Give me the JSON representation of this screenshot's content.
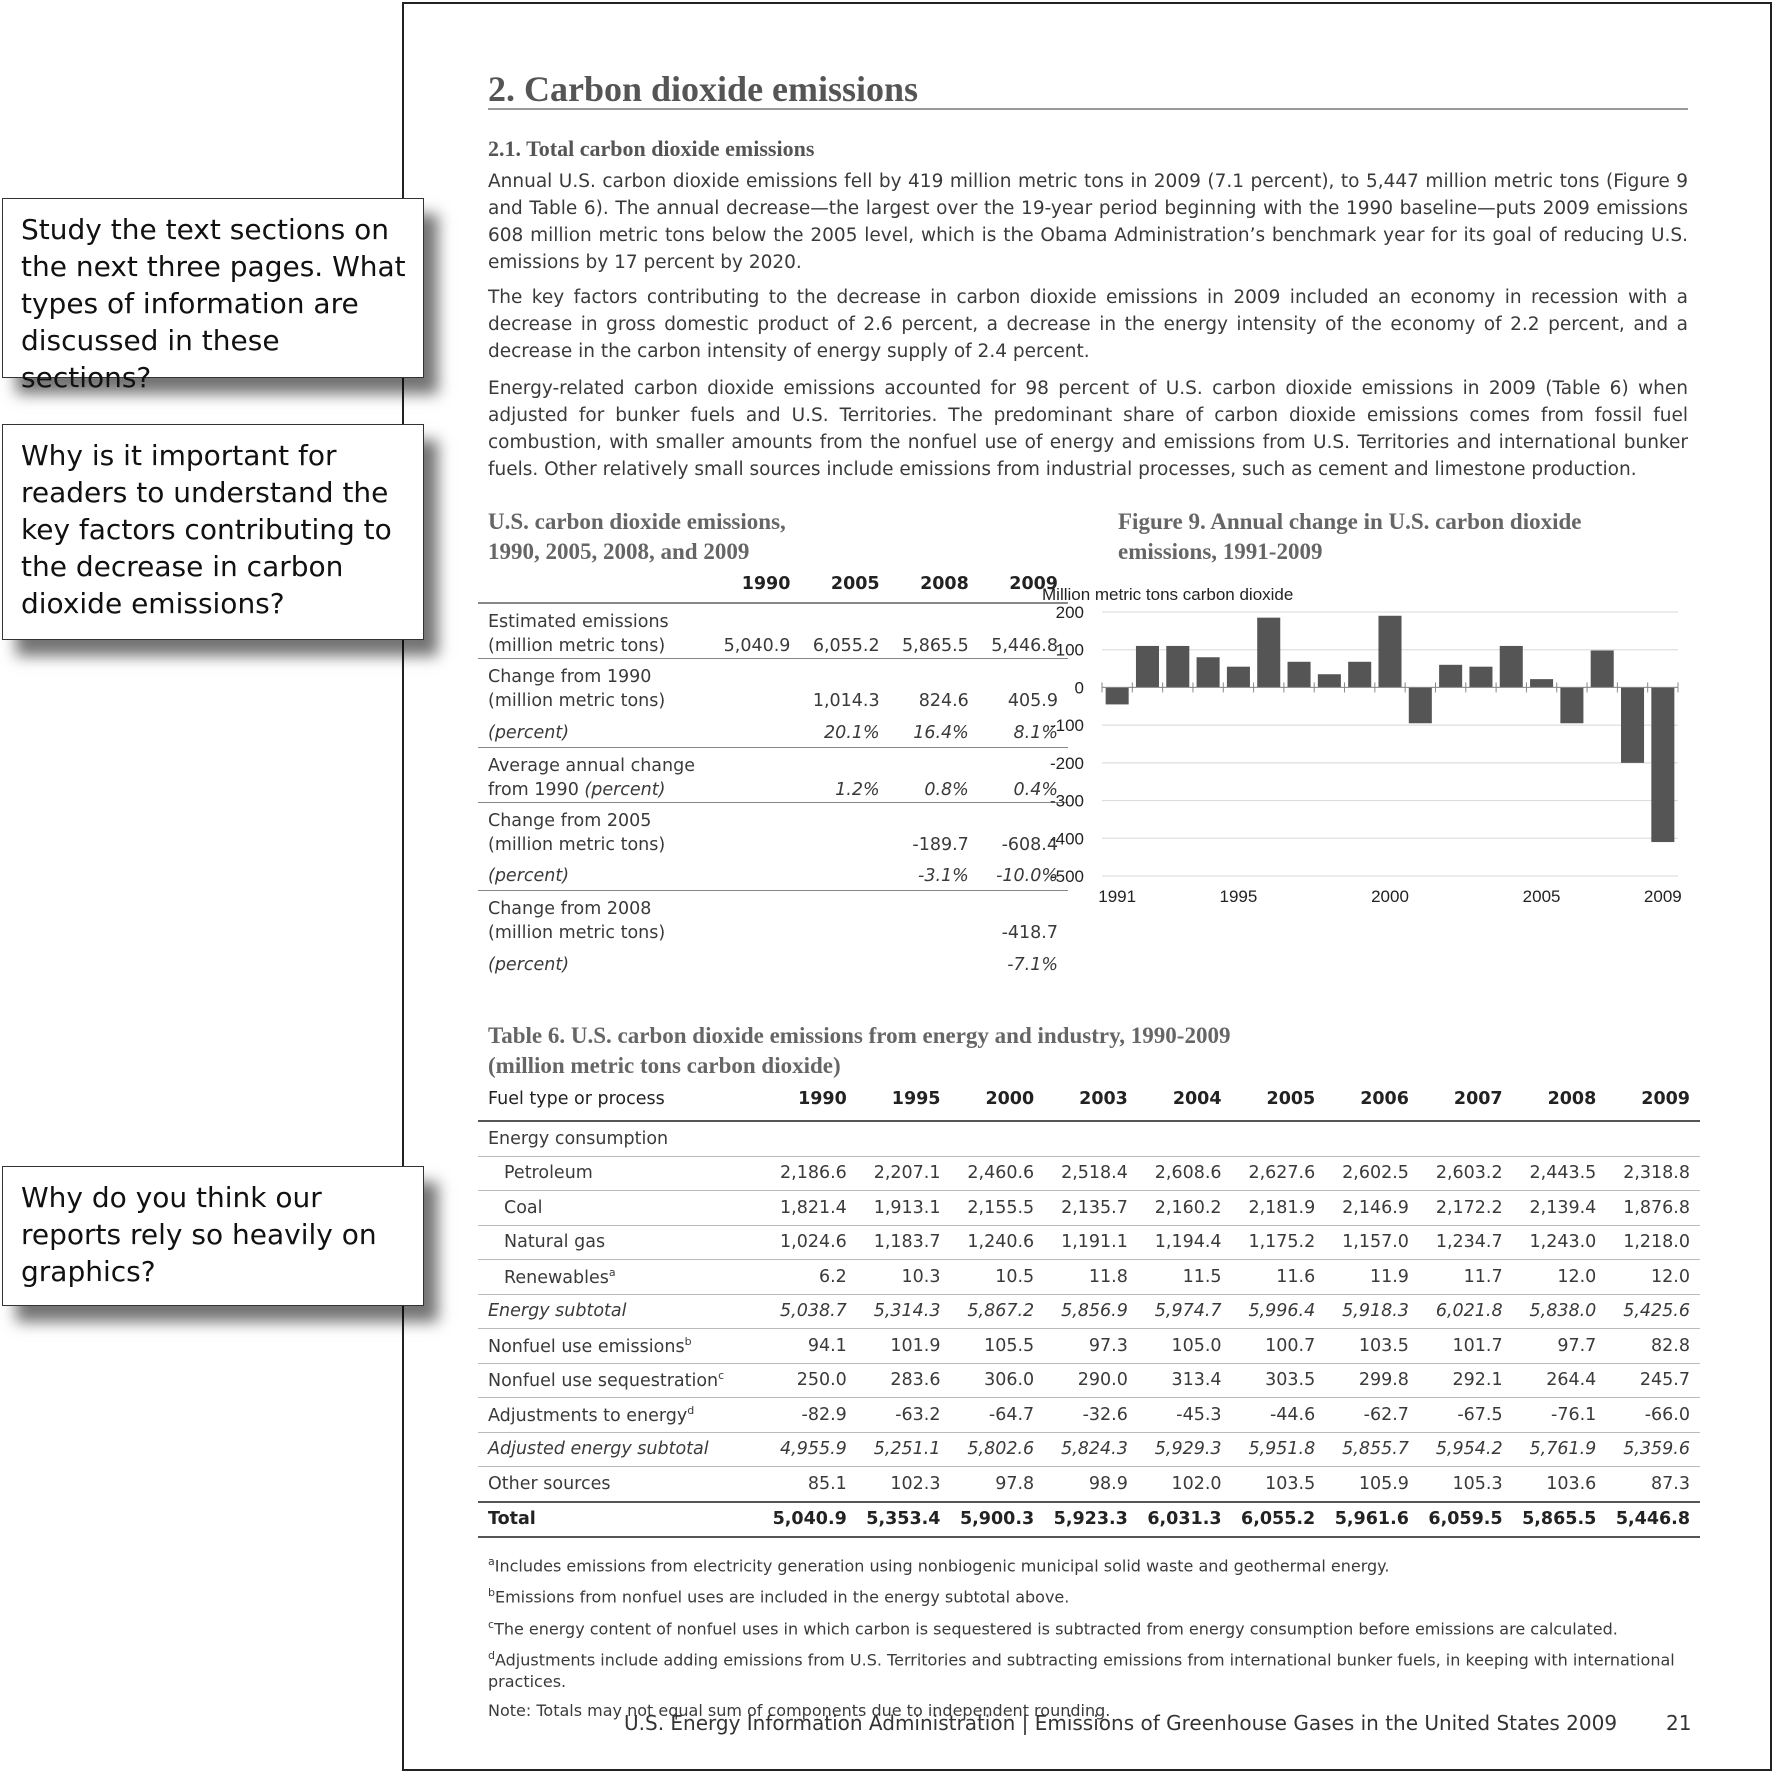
{
  "callouts": [
    "Study the text sections on the next three pages. What types of information are discussed in these sections?",
    "Why is it important for readers to understand the key factors contributing to the decrease in carbon dioxide emissions?",
    "Why do you think our reports rely so heavily on graphics?"
  ],
  "section_title": "2. Carbon dioxide emissions",
  "subsection_title": "2.1. Total carbon dioxide emissions",
  "paragraphs": [
    "Annual U.S. carbon dioxide emissions fell by 419 million metric tons in 2009 (7.1 percent), to 5,447 million metric tons (Figure 9 and Table 6). The annual decrease—the largest over the 19-year period beginning with the 1990 baseline—puts 2009 emissions 608 million metric tons below the 2005 level, which is the Obama Administration’s benchmark year for its goal of reducing U.S. emissions by 17 percent by 2020.",
    "The key factors contributing to the decrease in carbon dioxide emissions in 2009 included an economy in recession with a decrease in gross domestic product of 2.6 percent, a decrease in the energy intensity of the economy of 2.2 percent, and a decrease in the carbon intensity of energy supply of 2.4 percent.",
    "Energy-related carbon dioxide emissions accounted for 98 percent of U.S. carbon dioxide emissions in 2009 (Table 6) when adjusted for bunker fuels and U.S. Territories. The predominant share of carbon dioxide emissions comes from fossil fuel combustion, with smaller amounts from the nonfuel use of energy and emissions from U.S. Territories and international bunker fuels. Other relatively small sources include emissions from industrial processes, such as cement and limestone production."
  ],
  "summary_table": {
    "title_line1": "U.S. carbon dioxide emissions,",
    "title_line2": "1990, 2005, 2008, and 2009",
    "headers": [
      "1990",
      "2005",
      "2008",
      "2009"
    ],
    "rows": [
      {
        "l1": "Estimated emissions",
        "l2": "(million metric tons)",
        "v": [
          "5,040.9",
          "6,055.2",
          "5,865.5",
          "5,446.8"
        ]
      },
      {
        "l1": "Change from 1990",
        "l2": "(million metric tons)",
        "v": [
          "",
          "1,014.3",
          "824.6",
          "405.9"
        ],
        "p_label": "(percent)",
        "p": [
          "",
          "20.1%",
          "16.4%",
          "8.1%"
        ]
      },
      {
        "l1": "Average annual change",
        "l2_plain": "from 1990 ",
        "l2_it": "(percent)",
        "v": [
          "",
          "1.2%",
          "0.8%",
          "0.4%"
        ]
      },
      {
        "l1": "Change from 2005",
        "l2": "(million metric tons)",
        "v": [
          "",
          "",
          "-189.7",
          "-608.4"
        ],
        "p_label": "(percent)",
        "p": [
          "",
          "",
          "-3.1%",
          "-10.0%"
        ]
      },
      {
        "l1": "Change from 2008",
        "l2": "(million metric tons)",
        "v": [
          "",
          "",
          "",
          "-418.7"
        ],
        "p_label": "(percent)",
        "p": [
          "",
          "",
          "",
          "-7.1%"
        ]
      }
    ]
  },
  "figure": {
    "title_line1": "Figure 9. Annual change in U.S. carbon dioxide",
    "title_line2": "emissions, 1991-2009"
  },
  "chart_data": {
    "type": "bar",
    "title": "Figure 9. Annual change in U.S. carbon dioxide emissions, 1991-2009",
    "ylabel": "Million metric tons carbon dioxide",
    "x": [
      1991,
      1992,
      1993,
      1994,
      1995,
      1996,
      1997,
      1998,
      1999,
      2000,
      2001,
      2002,
      2003,
      2004,
      2005,
      2006,
      2007,
      2008,
      2009
    ],
    "values": [
      -45,
      110,
      110,
      80,
      55,
      185,
      68,
      35,
      68,
      190,
      -95,
      60,
      55,
      110,
      22,
      -95,
      98,
      -200,
      -410
    ],
    "ylim": [
      -500,
      200
    ],
    "yticks": [
      "200",
      "100",
      "0",
      "-100",
      "-200",
      "-300",
      "-400",
      "-500"
    ],
    "xtick_labels": [
      "1991",
      "1995",
      "2000",
      "2005",
      "2009"
    ],
    "bar_color": "#555555",
    "grid": true
  },
  "table6": {
    "title_line1": "Table 6. U.S. carbon dioxide emissions from energy and industry, 1990-2009",
    "title_line2": "(million metric tons carbon dioxide)",
    "col0": "Fuel type or process",
    "years": [
      "1990",
      "1995",
      "2000",
      "2003",
      "2004",
      "2005",
      "2006",
      "2007",
      "2008",
      "2009"
    ],
    "section": "Energy consumption",
    "rows": [
      {
        "label": "Petroleum",
        "v": [
          "2,186.6",
          "2,207.1",
          "2,460.6",
          "2,518.4",
          "2,608.6",
          "2,627.6",
          "2,602.5",
          "2,603.2",
          "2,443.5",
          "2,318.8"
        ]
      },
      {
        "label": "Coal",
        "v": [
          "1,821.4",
          "1,913.1",
          "2,155.5",
          "2,135.7",
          "2,160.2",
          "2,181.9",
          "2,146.9",
          "2,172.2",
          "2,139.4",
          "1,876.8"
        ]
      },
      {
        "label": "Natural gas",
        "v": [
          "1,024.6",
          "1,183.7",
          "1,240.6",
          "1,191.1",
          "1,194.4",
          "1,175.2",
          "1,157.0",
          "1,234.7",
          "1,243.0",
          "1,218.0"
        ]
      },
      {
        "label": "Renewables",
        "sup": "a",
        "v": [
          "6.2",
          "10.3",
          "10.5",
          "11.8",
          "11.5",
          "11.6",
          "11.9",
          "11.7",
          "12.0",
          "12.0"
        ]
      },
      {
        "label": "Energy subtotal",
        "v": [
          "5,038.7",
          "5,314.3",
          "5,867.2",
          "5,856.9",
          "5,974.7",
          "5,996.4",
          "5,918.3",
          "6,021.8",
          "5,838.0",
          "5,425.6"
        ]
      },
      {
        "label": "Nonfuel use emissions",
        "sup": "b",
        "v": [
          "94.1",
          "101.9",
          "105.5",
          "97.3",
          "105.0",
          "100.7",
          "103.5",
          "101.7",
          "97.7",
          "82.8"
        ]
      },
      {
        "label": "Nonfuel use sequestration",
        "sup": "c",
        "v": [
          "250.0",
          "283.6",
          "306.0",
          "290.0",
          "313.4",
          "303.5",
          "299.8",
          "292.1",
          "264.4",
          "245.7"
        ]
      },
      {
        "label": "Adjustments to energy",
        "sup": "d",
        "v": [
          "-82.9",
          "-63.2",
          "-64.7",
          "-32.6",
          "-45.3",
          "-44.6",
          "-62.7",
          "-67.5",
          "-76.1",
          "-66.0"
        ]
      },
      {
        "label": "Adjusted energy subtotal",
        "v": [
          "4,955.9",
          "5,251.1",
          "5,802.6",
          "5,824.3",
          "5,929.3",
          "5,951.8",
          "5,855.7",
          "5,954.2",
          "5,761.9",
          "5,359.6"
        ]
      },
      {
        "label": "Other sources",
        "v": [
          "85.1",
          "102.3",
          "97.8",
          "98.9",
          "102.0",
          "103.5",
          "105.9",
          "105.3",
          "103.6",
          "87.3"
        ]
      },
      {
        "label": "Total",
        "v": [
          "5,040.9",
          "5,353.4",
          "5,900.3",
          "5,923.3",
          "6,031.3",
          "6,055.2",
          "5,961.6",
          "6,059.5",
          "5,865.5",
          "5,446.8"
        ]
      }
    ]
  },
  "footnotes": [
    {
      "sup": "a",
      "text": "Includes emissions from electricity generation using nonbiogenic municipal solid waste and geothermal energy."
    },
    {
      "sup": "b",
      "text": "Emissions from nonfuel uses are included in the energy subtotal above."
    },
    {
      "sup": "c",
      "text": "The energy content of nonfuel uses in which carbon is sequestered is subtracted from energy consumption before emissions are calculated."
    },
    {
      "sup": "d",
      "text": "Adjustments include adding emissions from U.S. Territories and subtracting emissions from international bunker fuels, in keeping with international practices."
    }
  ],
  "note": "Note: Totals may not equal sum of components due to independent rounding.",
  "footer": "U.S. Energy Information Administration | Emissions of Greenhouse Gases in the United States 2009",
  "page_number": "21"
}
